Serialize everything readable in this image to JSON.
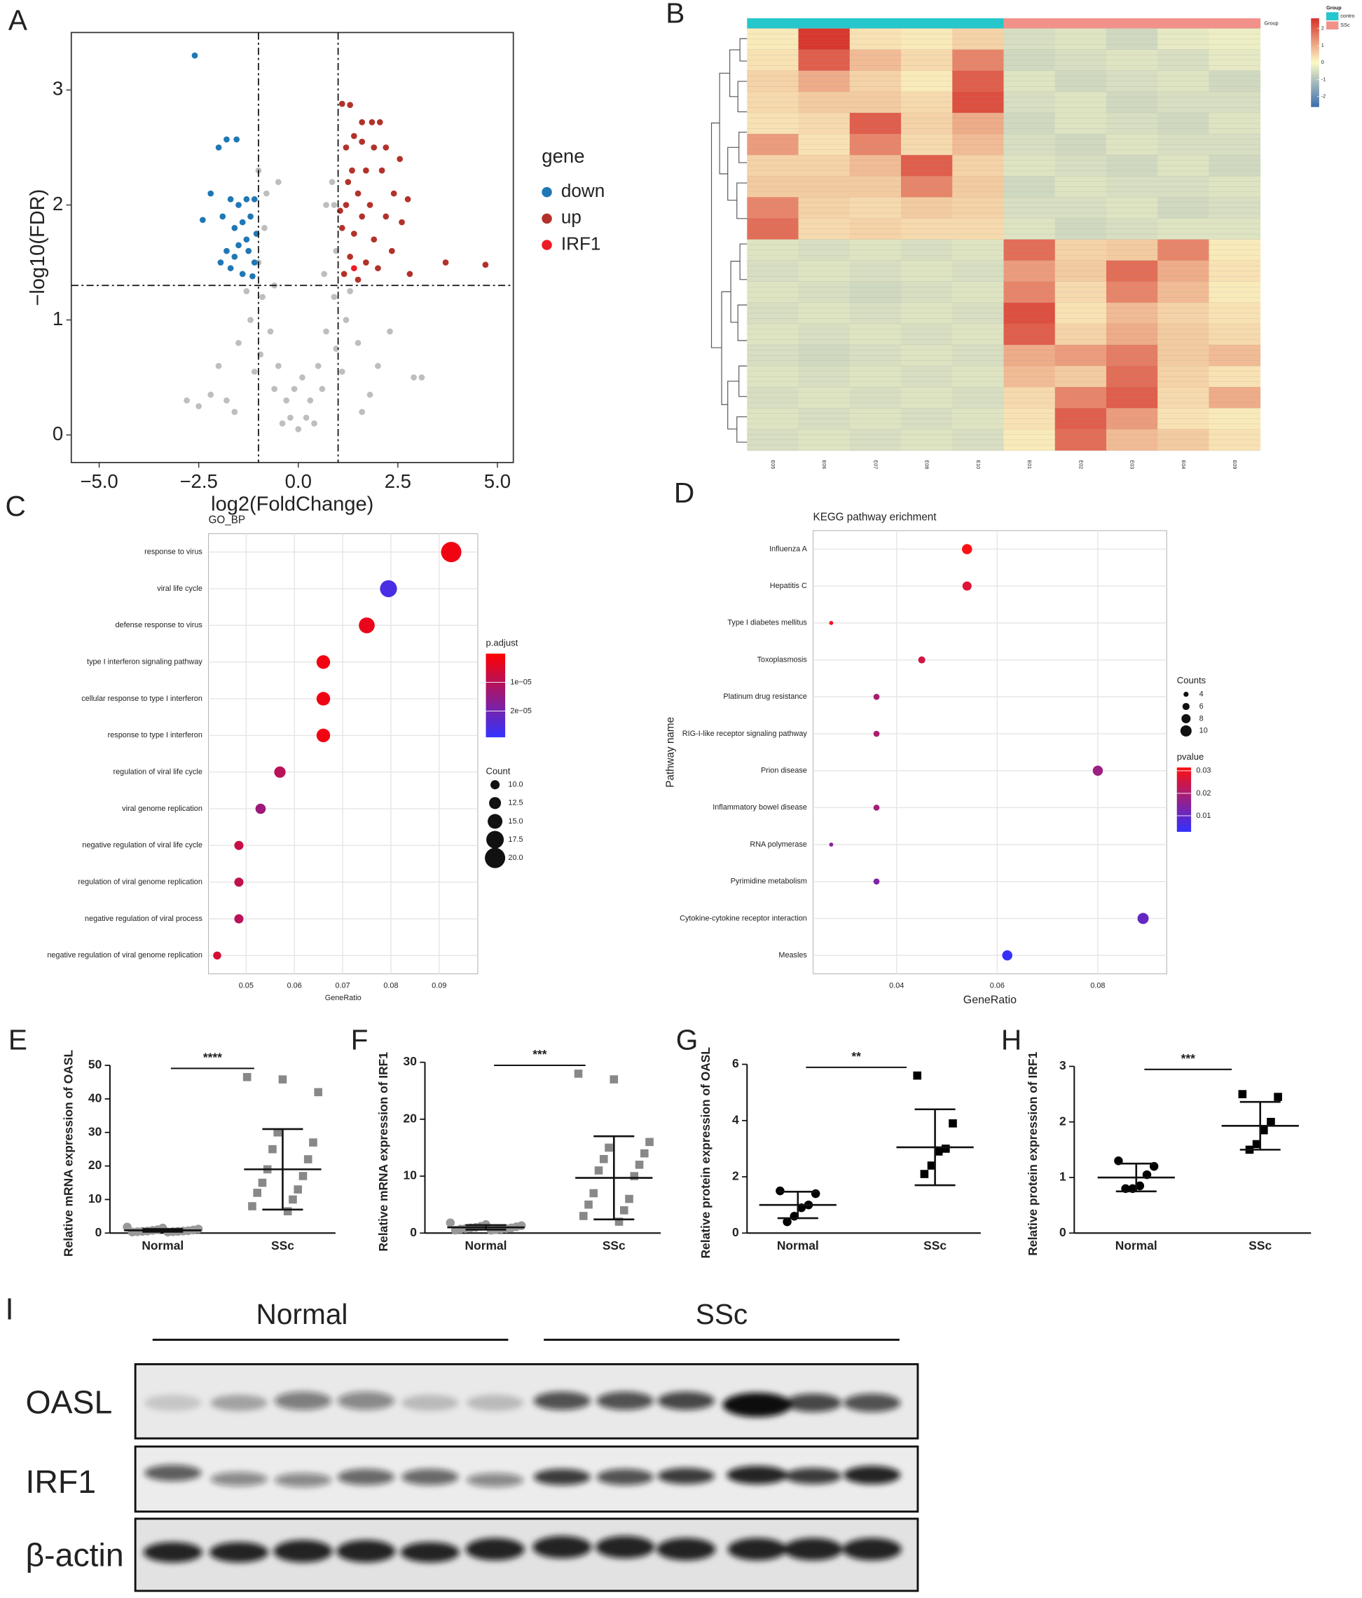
{
  "chart_data": [
    {
      "panel": "A",
      "type": "scatter",
      "xlabel": "log2(FoldChange)",
      "ylabel": "−log10(FDR)",
      "xlim": [
        -5.7,
        5.4
      ],
      "ylim": [
        -0.24,
        3.5
      ],
      "xticks": [
        {
          "value": -5,
          "label": "−5.0"
        },
        {
          "value": -2.5,
          "label": "−2.5"
        },
        {
          "value": 0,
          "label": "0.0"
        },
        2.5,
        {
          "value": 5,
          "label": "5.0"
        }
      ],
      "yticks": [
        0,
        1,
        2,
        3
      ],
      "vlines": [
        -1,
        1
      ],
      "hlines": [
        1.3
      ],
      "legend_title": "gene",
      "series": [
        {
          "color": "#bebebe",
          "x": [
            0,
            -0.3,
            0.3,
            -0.5,
            0.5,
            -0.7,
            0.7,
            -0.9,
            0.9,
            -1.0,
            0.95,
            -1.2,
            1.2,
            -1.5,
            1.5,
            -2.0,
            2.0,
            -2.5,
            -2.8,
            2.9,
            3.1,
            -0.2,
            0.2,
            -0.6,
            0.6,
            -1.1,
            1.1,
            -0.85,
            0.9,
            0.85,
            -0.8,
            -0.5,
            -1.8,
            1.8,
            -0.4,
            0.4,
            -2.2,
            2.3,
            -1.3,
            1.3,
            -0.1,
            0.1,
            -1.6,
            1.6,
            -0.95,
            0.95,
            -0.6,
            0.65,
            -1.0,
            0.7
          ],
          "y": [
            0.05,
            0.3,
            0.3,
            0.6,
            0.6,
            0.9,
            0.9,
            1.2,
            1.2,
            1.5,
            1.6,
            1.0,
            1.0,
            0.8,
            0.8,
            0.6,
            0.6,
            0.25,
            0.3,
            0.5,
            0.5,
            0.15,
            0.15,
            0.4,
            0.4,
            0.55,
            0.55,
            1.8,
            2.0,
            2.2,
            2.1,
            2.2,
            0.3,
            0.35,
            0.1,
            0.1,
            0.35,
            0.9,
            1.25,
            1.25,
            0.4,
            0.5,
            0.2,
            0.2,
            0.7,
            0.75,
            1.3,
            1.4,
            2.3,
            2.0
          ]
        },
        {
          "name": "down",
          "color": "#1f78b4",
          "x": [
            -2.6,
            -1.8,
            -1.55,
            -2.0,
            -2.2,
            -2.4,
            -1.7,
            -1.5,
            -1.3,
            -1.1,
            -1.9,
            -1.6,
            -1.4,
            -1.2,
            -1.05,
            -1.8,
            -1.5,
            -1.25,
            -1.1,
            -1.7,
            -1.4,
            -1.15,
            -1.95,
            -1.3,
            -1.6
          ],
          "y": [
            3.3,
            2.57,
            2.57,
            2.5,
            2.1,
            1.87,
            2.05,
            2.0,
            2.05,
            2.05,
            1.9,
            1.8,
            1.85,
            1.9,
            1.75,
            1.6,
            1.65,
            1.6,
            1.5,
            1.45,
            1.4,
            1.38,
            1.5,
            1.7,
            1.55
          ]
        },
        {
          "name": "up",
          "color": "#b2322a",
          "x": [
            1.1,
            1.3,
            1.6,
            1.85,
            2.05,
            1.4,
            1.6,
            1.2,
            1.9,
            2.2,
            2.55,
            1.35,
            1.7,
            2.1,
            2.4,
            2.75,
            1.5,
            1.2,
            1.8,
            2.2,
            2.6,
            1.1,
            1.4,
            1.9,
            2.35,
            1.3,
            1.7,
            2.0,
            1.15,
            1.5,
            3.7,
            4.7,
            2.8,
            1.05,
            1.25,
            1.6
          ],
          "y": [
            2.88,
            2.87,
            2.72,
            2.72,
            2.72,
            2.6,
            2.55,
            2.5,
            2.5,
            2.5,
            2.4,
            2.3,
            2.3,
            2.3,
            2.1,
            2.05,
            2.1,
            2.0,
            2.0,
            1.9,
            1.85,
            1.8,
            1.75,
            1.7,
            1.6,
            1.55,
            1.5,
            1.45,
            1.4,
            1.35,
            1.5,
            1.48,
            1.4,
            1.95,
            2.2,
            1.9
          ]
        },
        {
          "name": "IRF1",
          "color": "#ee1c25",
          "x": [
            1.4
          ],
          "y": [
            1.45
          ]
        }
      ]
    },
    {
      "panel": "B",
      "type": "heatmap",
      "columns": [
        "E05",
        "E06",
        "E07",
        "E08",
        "E10",
        "E01",
        "E02",
        "E03",
        "E04",
        "E09"
      ],
      "column_group": [
        0,
        0,
        0,
        0,
        0,
        1,
        1,
        1,
        1,
        1
      ],
      "zlim": [
        -2.6,
        2.6
      ],
      "zticks": [
        2,
        1,
        0,
        -1,
        -2
      ],
      "colorscale": [
        "#3c6fae",
        "#fcf9c6",
        "#d73027"
      ],
      "group_legend": {
        "title": "Group",
        "names": [
          "contro",
          "SSc"
        ],
        "colors": [
          "#25c7cc",
          "#f2918a"
        ]
      },
      "values": [
        [
          0.2,
          2.5,
          0.3,
          0.2,
          0.5,
          -0.5,
          -0.4,
          -0.6,
          -0.3,
          -0.2
        ],
        [
          0.3,
          2.0,
          0.8,
          0.4,
          1.5,
          -0.6,
          -0.5,
          -0.4,
          -0.5,
          -0.3
        ],
        [
          0.5,
          1.0,
          0.5,
          0.2,
          2.0,
          -0.4,
          -0.6,
          -0.5,
          -0.4,
          -0.6
        ],
        [
          0.4,
          0.6,
          0.6,
          0.4,
          2.2,
          -0.5,
          -0.4,
          -0.6,
          -0.5,
          -0.5
        ],
        [
          0.3,
          0.4,
          2.0,
          0.5,
          1.0,
          -0.6,
          -0.4,
          -0.5,
          -0.6,
          -0.4
        ],
        [
          1.2,
          0.3,
          1.5,
          0.4,
          0.8,
          -0.5,
          -0.6,
          -0.4,
          -0.5,
          -0.5
        ],
        [
          0.5,
          0.5,
          0.8,
          2.0,
          0.5,
          -0.4,
          -0.5,
          -0.6,
          -0.4,
          -0.6
        ],
        [
          0.6,
          0.6,
          0.6,
          1.5,
          0.6,
          -0.6,
          -0.4,
          -0.5,
          -0.5,
          -0.4
        ],
        [
          1.5,
          0.5,
          0.4,
          0.6,
          0.5,
          -0.5,
          -0.5,
          -0.4,
          -0.6,
          -0.5
        ],
        [
          1.8,
          0.4,
          0.5,
          0.4,
          0.4,
          -0.4,
          -0.6,
          -0.5,
          -0.4,
          -0.4
        ],
        [
          -0.4,
          -0.5,
          -0.4,
          -0.5,
          -0.4,
          1.8,
          0.5,
          0.6,
          1.5,
          0.2
        ],
        [
          -0.5,
          -0.4,
          -0.5,
          -0.4,
          -0.5,
          1.2,
          0.6,
          1.8,
          1.0,
          0.3
        ],
        [
          -0.4,
          -0.5,
          -0.6,
          -0.5,
          -0.4,
          1.5,
          0.4,
          1.5,
          0.8,
          0.2
        ],
        [
          -0.5,
          -0.4,
          -0.5,
          -0.4,
          -0.5,
          2.2,
          0.3,
          0.8,
          0.5,
          0.3
        ],
        [
          -0.4,
          -0.5,
          -0.4,
          -0.5,
          -0.4,
          2.0,
          0.5,
          1.0,
          0.6,
          0.4
        ],
        [
          -0.5,
          -0.6,
          -0.5,
          -0.4,
          -0.5,
          1.0,
          1.2,
          1.6,
          0.6,
          0.8
        ],
        [
          -0.4,
          -0.5,
          -0.4,
          -0.5,
          -0.4,
          0.8,
          0.6,
          1.8,
          0.5,
          0.3
        ],
        [
          -0.5,
          -0.4,
          -0.5,
          -0.4,
          -0.5,
          0.4,
          1.5,
          2.0,
          0.4,
          1.0
        ],
        [
          -0.4,
          -0.5,
          -0.4,
          -0.5,
          -0.4,
          0.3,
          2.0,
          1.2,
          0.3,
          0.2
        ],
        [
          -0.5,
          -0.4,
          -0.5,
          -0.4,
          -0.5,
          0.2,
          1.8,
          0.8,
          0.6,
          0.3
        ]
      ]
    },
    {
      "panel": "C",
      "type": "dot",
      "title": "GO_BP",
      "xlabel": "GeneRatio",
      "xlim": [
        0.0422,
        0.098
      ],
      "xticks": [
        0.05,
        0.06,
        0.07,
        0.08,
        0.09
      ],
      "categories": [
        "response to virus",
        "viral life cycle",
        "defense response to virus",
        "type I interferon signaling pathway",
        "cellular response to type I interferon",
        "response to type I interferon",
        "regulation of viral life cycle",
        "viral genome replication",
        "negative regulation of viral life cycle",
        "regulation of viral genome replication",
        "negative regulation of viral process",
        "negative regulation of viral genome replication"
      ],
      "values": [
        0.0925,
        0.0795,
        0.075,
        0.066,
        0.066,
        0.066,
        0.057,
        0.053,
        0.0485,
        0.0485,
        0.0485,
        0.044
      ],
      "counts": [
        20,
        17,
        16,
        14,
        14,
        14,
        12,
        11,
        10,
        10,
        10,
        9
      ],
      "color_values": [
        2e-06,
        2.6e-05,
        3e-06,
        2e-06,
        2e-06,
        2e-06,
        1e-05,
        1.4e-05,
        8e-06,
        9e-06,
        1e-05,
        6e-06
      ],
      "colorbar": {
        "title": "p.adjust",
        "lim": [
          0,
          2.9e-05
        ],
        "colors": [
          "#ff0000",
          "#3333ff"
        ],
        "ticks": [
          {
            "value": 1e-05,
            "label": "1e−05"
          },
          {
            "value": 2e-05,
            "label": "2e−05"
          }
        ]
      },
      "size_legend": {
        "title": "Count",
        "ticks": [
          {
            "value": 10,
            "label": "10.0"
          },
          12.5,
          {
            "value": 15,
            "label": "15.0"
          },
          17.5,
          {
            "value": 20,
            "label": "20.0"
          }
        ]
      }
    },
    {
      "panel": "D",
      "type": "dot",
      "title": "KEGG pathway erichment",
      "xlabel": "GeneRatio",
      "ylabel": "Pathway name",
      "xlim": [
        0.0234,
        0.0937
      ],
      "xticks": [
        0.04,
        0.06,
        0.08
      ],
      "categories": [
        "Influenza A",
        "Hepatitis C",
        "Type I diabetes mellitus",
        "Toxoplasmosis",
        "Platinum drug resistance",
        "RIG-I-like receptor signaling pathway",
        "Prion disease",
        "Inflammatory bowel disease",
        "RNA polymerase",
        "Pyrimidine metabolism",
        "Cytokine-cytokine receptor interaction",
        "Measles"
      ],
      "values": [
        0.054,
        0.054,
        0.027,
        0.045,
        0.036,
        0.036,
        0.08,
        0.036,
        0.027,
        0.036,
        0.089,
        0.062
      ],
      "counts": [
        9,
        8,
        3,
        6,
        5,
        5,
        9,
        5,
        3,
        5,
        10,
        9
      ],
      "color_values": [
        0.031,
        0.027,
        0.03,
        0.025,
        0.02,
        0.02,
        0.018,
        0.019,
        0.015,
        0.014,
        0.01,
        0.004
      ],
      "colorbar": {
        "title": "pvalue",
        "lim": [
          0.0315,
          0.003
        ],
        "colors": [
          "#ff1010",
          "#3030ff"
        ],
        "ticks": [
          0.03,
          0.02,
          0.01
        ]
      },
      "size_legend": {
        "title": "Counts",
        "ticks": [
          4,
          6,
          8,
          10
        ]
      }
    },
    {
      "panel": "E",
      "type": "strip",
      "ylabel": "Relative mRNA expression of OASL",
      "categories": [
        "Normal",
        "SSc"
      ],
      "ylim": [
        0,
        50
      ],
      "yticks": [
        0,
        10,
        20,
        30,
        40,
        50
      ],
      "significance": "****",
      "values": [
        [
          1.8,
          1.5,
          1.2,
          1.0,
          0.9,
          0.8,
          0.7,
          0.6,
          0.6,
          0.5,
          0.5,
          0.4,
          0.4,
          0.3,
          0.3
        ],
        [
          46.5,
          45.8,
          42,
          30,
          27,
          25,
          22,
          19,
          17,
          15,
          13,
          12,
          10,
          8,
          6.5
        ]
      ],
      "mean": [
        0.8,
        19
      ],
      "sd": [
        0.4,
        12
      ],
      "colors": [
        "#999999",
        "#888888"
      ],
      "markers": [
        "circle",
        "square"
      ]
    },
    {
      "panel": "F",
      "type": "strip",
      "ylabel": "Relative mRNA expression of IRF1",
      "categories": [
        "Normal",
        "SSc"
      ],
      "ylim": [
        0,
        30
      ],
      "yticks": [
        0,
        10,
        20,
        30
      ],
      "significance": "***",
      "values": [
        [
          1.8,
          1.5,
          1.3,
          1.2,
          1.1,
          1.0,
          0.9,
          0.9,
          0.8,
          0.8,
          0.7,
          0.7,
          0.6,
          0.5,
          0.5
        ],
        [
          28,
          27,
          16,
          15,
          14,
          13,
          12,
          11,
          10,
          7,
          6,
          5,
          4,
          3,
          2
        ]
      ],
      "mean": [
        1.0,
        9.7
      ],
      "sd": [
        0.4,
        7.3
      ],
      "colors": [
        "#999999",
        "#888888"
      ],
      "markers": [
        "circle",
        "square"
      ]
    },
    {
      "panel": "G",
      "type": "strip",
      "ylabel": "Relative protein expression of OASL",
      "categories": [
        "Normal",
        "SSc"
      ],
      "ylim": [
        0,
        6
      ],
      "yticks": [
        0,
        2,
        4,
        6
      ],
      "significance": "**",
      "values": [
        [
          1.5,
          1.4,
          1.0,
          0.9,
          0.6,
          0.4
        ],
        [
          5.6,
          3.9,
          3.0,
          2.9,
          2.4,
          2.1
        ]
      ],
      "mean": [
        1.0,
        3.05
      ],
      "sd": [
        0.47,
        1.35
      ],
      "colors": [
        "#000000",
        "#000000"
      ],
      "markers": [
        "circle",
        "square"
      ]
    },
    {
      "panel": "H",
      "type": "strip",
      "ylabel": "Relative protein expression of IRF1",
      "categories": [
        "Normal",
        "SSc"
      ],
      "ylim": [
        0,
        3
      ],
      "yticks": [
        0,
        1,
        2,
        3
      ],
      "significance": "***",
      "values": [
        [
          1.3,
          1.2,
          1.05,
          0.85,
          0.8,
          0.8
        ],
        [
          2.5,
          2.45,
          2.0,
          1.85,
          1.6,
          1.5
        ]
      ],
      "mean": [
        1.0,
        1.93
      ],
      "sd": [
        0.25,
        0.43
      ],
      "colors": [
        "#000000",
        "#000000"
      ],
      "markers": [
        "circle",
        "square"
      ]
    }
  ],
  "blot": {
    "panel": "I",
    "groups": [
      "Normal",
      "SSc"
    ],
    "rows": [
      "OASL",
      "IRF1",
      "β-actin"
    ]
  }
}
